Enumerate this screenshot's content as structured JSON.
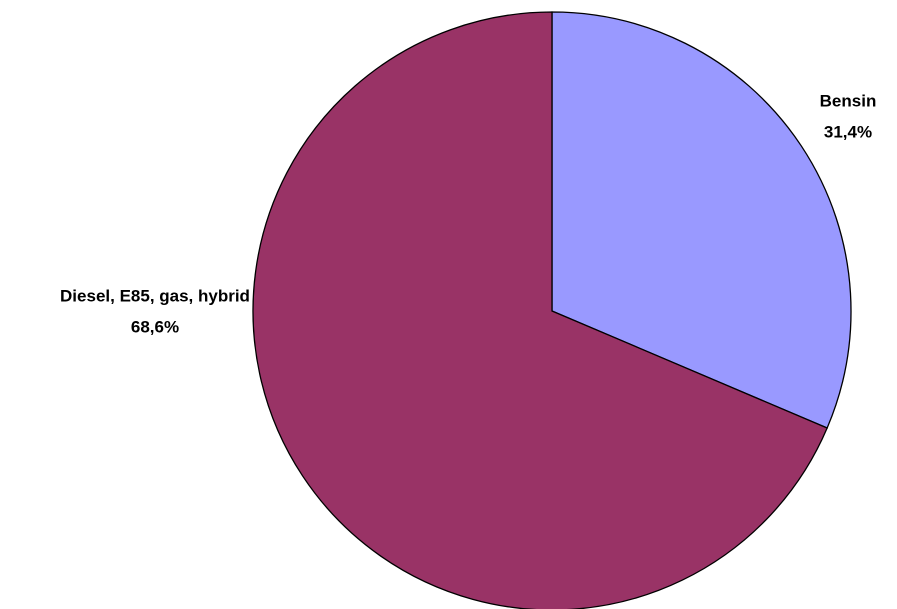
{
  "chart_data": {
    "type": "pie",
    "categories": [
      "Bensin",
      "Diesel, E85, gas, hybrid"
    ],
    "values": [
      31.4,
      68.6
    ],
    "value_labels": [
      "31,4%",
      "68,6%"
    ],
    "colors": [
      "#9999ff",
      "#993366"
    ]
  }
}
